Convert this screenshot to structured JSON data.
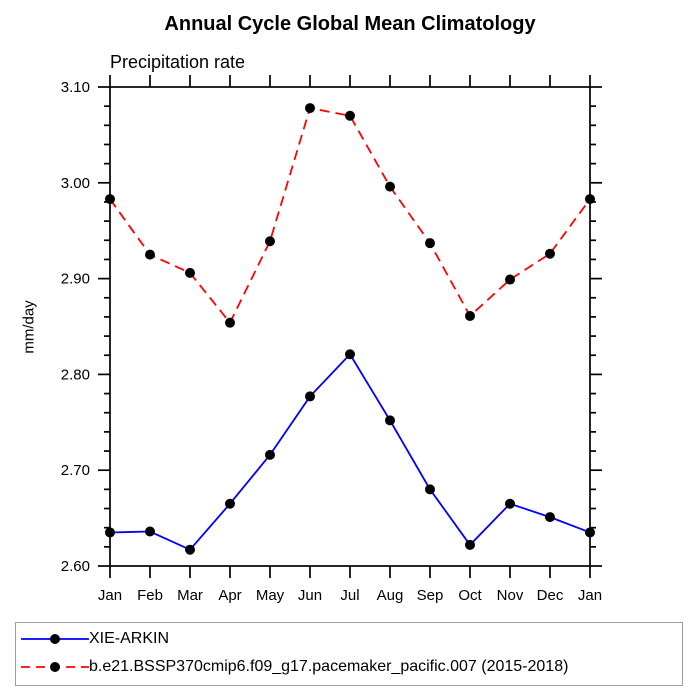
{
  "chart_data": {
    "type": "line",
    "title": "Annual Cycle Global Mean Climatology",
    "subtitle": "Precipitation rate",
    "ylabel": "mm/day",
    "categories": [
      "Jan",
      "Feb",
      "Mar",
      "Apr",
      "May",
      "Jun",
      "Jul",
      "Aug",
      "Sep",
      "Oct",
      "Nov",
      "Dec",
      "Jan"
    ],
    "ylim": [
      2.6,
      3.1
    ],
    "ytick_values": [
      2.6,
      2.7,
      2.8,
      2.9,
      3.0,
      3.1
    ],
    "ytick_labels": [
      "2.60",
      "2.70",
      "2.80",
      "2.90",
      "3.00",
      "3.10"
    ],
    "minor_tick_step": 0.02,
    "grid": false,
    "legend_position": "bottom-left-box",
    "axis_color": "#000000",
    "marker": "filled-circle",
    "marker_color": "#000000",
    "series": [
      {
        "name": "XIE-ARKIN",
        "color": "#0000ff",
        "line_style": "solid",
        "values": [
          2.635,
          2.636,
          2.617,
          2.665,
          2.716,
          2.777,
          2.821,
          2.752,
          2.68,
          2.622,
          2.665,
          2.651,
          2.635
        ]
      },
      {
        "name": "b.e21.BSSP370cmip6.f09_g17.pacemaker_pacific.007 (2015-2018)",
        "color": "#ff0000",
        "line_style": "dashed",
        "values": [
          2.983,
          2.925,
          2.906,
          2.854,
          2.939,
          3.078,
          3.07,
          2.996,
          2.937,
          2.861,
          2.899,
          2.926,
          2.983
        ]
      }
    ]
  }
}
